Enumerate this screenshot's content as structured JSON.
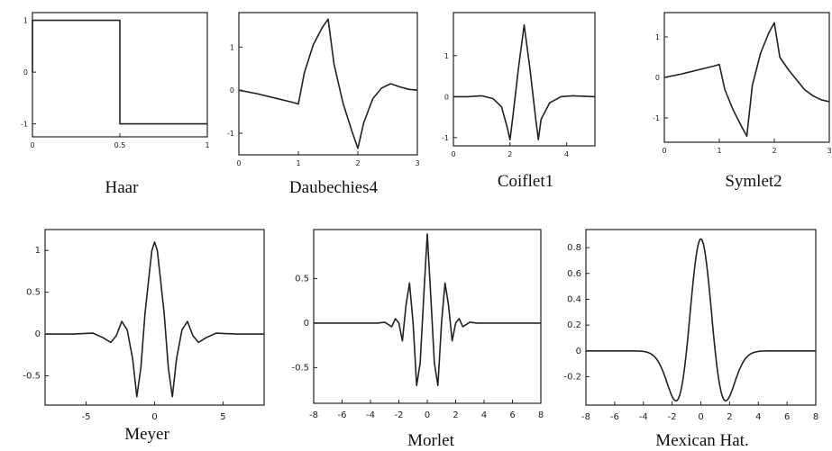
{
  "chart_data": [
    {
      "type": "line",
      "title": "Haar",
      "xlim": [
        0,
        1
      ],
      "ylim": [
        -1.25,
        1.15
      ],
      "xticks": [
        0,
        0.5,
        1
      ],
      "xtick_labels": [
        "0",
        "0.5",
        "1"
      ],
      "yticks": [
        1,
        0,
        -1
      ],
      "ytick_labels": [
        "1",
        "0",
        "-1"
      ],
      "series": [
        {
          "x": [
            0,
            0,
            0.5,
            0.5,
            1
          ],
          "y": [
            0,
            1,
            1,
            -1,
            -1
          ]
        }
      ]
    },
    {
      "type": "line",
      "title": "Daubechies4",
      "xlim": [
        0,
        3
      ],
      "ylim": [
        -1.5,
        1.8
      ],
      "xticks": [
        0,
        1,
        2,
        3
      ],
      "xtick_labels": [
        "0",
        "1",
        "2",
        "3"
      ],
      "yticks": [
        1,
        0,
        -1
      ],
      "ytick_labels": [
        "1",
        "0",
        "-1"
      ],
      "series": [
        {
          "x": [
            0,
            0.3,
            0.6,
            0.9,
            1.0,
            1.1,
            1.25,
            1.4,
            1.5,
            1.6,
            1.75,
            1.9,
            2.0,
            2.1,
            2.25,
            2.4,
            2.55,
            2.7,
            2.85,
            3.0
          ],
          "y": [
            0,
            -0.08,
            -0.18,
            -0.28,
            -0.32,
            0.4,
            1.05,
            1.45,
            1.65,
            0.6,
            -0.3,
            -0.95,
            -1.35,
            -0.75,
            -0.2,
            0.05,
            0.15,
            0.08,
            0.02,
            0.0
          ]
        }
      ]
    },
    {
      "type": "line",
      "title": "Coiflet1",
      "xlim": [
        0,
        5
      ],
      "ylim": [
        -1.2,
        2.05
      ],
      "xticks": [
        0,
        2,
        4
      ],
      "xtick_labels": [
        "0",
        "2",
        "4"
      ],
      "yticks": [
        1,
        0,
        -1
      ],
      "ytick_labels": [
        "1",
        "0",
        "-1"
      ],
      "series": [
        {
          "x": [
            0,
            0.5,
            1.0,
            1.4,
            1.7,
            1.9,
            2.0,
            2.1,
            2.3,
            2.5,
            2.7,
            2.9,
            3.0,
            3.1,
            3.4,
            3.8,
            4.2,
            5.0
          ],
          "y": [
            0,
            0,
            0.02,
            -0.05,
            -0.25,
            -0.75,
            -1.05,
            -0.5,
            0.7,
            1.75,
            0.7,
            -0.5,
            -1.05,
            -0.55,
            -0.15,
            0.0,
            0.02,
            0
          ]
        }
      ]
    },
    {
      "type": "line",
      "title": "Symlet2",
      "xlim": [
        0,
        3
      ],
      "ylim": [
        -1.6,
        1.6
      ],
      "xticks": [
        0,
        1,
        2,
        3
      ],
      "xtick_labels": [
        "0",
        "1",
        "2",
        "3"
      ],
      "yticks": [
        1,
        0,
        -1
      ],
      "ytick_labels": [
        "1",
        "0",
        "-1"
      ],
      "series": [
        {
          "x": [
            0,
            0.3,
            0.6,
            0.9,
            1.0,
            1.1,
            1.25,
            1.4,
            1.5,
            1.6,
            1.75,
            1.9,
            2.0,
            2.1,
            2.25,
            2.4,
            2.55,
            2.7,
            2.85,
            3.0
          ],
          "y": [
            0,
            0.08,
            0.18,
            0.28,
            0.32,
            -0.3,
            -0.8,
            -1.2,
            -1.45,
            -0.2,
            0.6,
            1.1,
            1.35,
            0.5,
            0.2,
            -0.05,
            -0.3,
            -0.45,
            -0.55,
            -0.6
          ]
        }
      ]
    },
    {
      "type": "line",
      "title": "Meyer",
      "xlim": [
        -8,
        8
      ],
      "ylim": [
        -0.85,
        1.25
      ],
      "xticks": [
        -5,
        0,
        5
      ],
      "xtick_labels": [
        "-5",
        "0",
        "5"
      ],
      "yticks": [
        1,
        0.5,
        0,
        -0.5
      ],
      "ytick_labels": [
        "1",
        "0.5",
        "0",
        "-0.5"
      ],
      "series": [
        {
          "x": [
            -8,
            -6,
            -4.5,
            -3.8,
            -3.2,
            -2.8,
            -2.4,
            -2.0,
            -1.6,
            -1.3,
            -1.0,
            -0.7,
            -0.4,
            -0.2,
            0,
            0.2,
            0.4,
            0.7,
            1.0,
            1.3,
            1.6,
            2.0,
            2.4,
            2.8,
            3.2,
            3.8,
            4.5,
            6,
            8
          ],
          "y": [
            0,
            0,
            0.01,
            -0.04,
            -0.1,
            -0.02,
            0.15,
            0.05,
            -0.3,
            -0.75,
            -0.4,
            0.25,
            0.7,
            1.0,
            1.1,
            1.0,
            0.7,
            0.25,
            -0.4,
            -0.75,
            -0.3,
            0.05,
            0.15,
            -0.02,
            -0.1,
            -0.04,
            0.01,
            0,
            0
          ]
        }
      ]
    },
    {
      "type": "line",
      "title": "Morlet",
      "xlim": [
        -8,
        8
      ],
      "ylim": [
        -0.9,
        1.05
      ],
      "xticks": [
        -8,
        -6,
        -4,
        -2,
        0,
        2,
        4,
        6,
        8
      ],
      "xtick_labels": [
        "-8",
        "-6",
        "-4",
        "-2",
        "0",
        "2",
        "4",
        "6",
        "8"
      ],
      "yticks": [
        0.5,
        0,
        -0.5
      ],
      "ytick_labels": [
        "0.5",
        "0",
        "-0.5"
      ],
      "series": [
        {
          "x": [
            -8,
            -3.5,
            -3.0,
            -2.5,
            -2.25,
            -2.0,
            -1.75,
            -1.5,
            -1.25,
            -1.0,
            -0.75,
            -0.5,
            -0.25,
            0,
            0.25,
            0.5,
            0.75,
            1.0,
            1.25,
            1.5,
            1.75,
            2.0,
            2.25,
            2.5,
            3.0,
            3.5,
            8
          ],
          "y": [
            0,
            0,
            0.01,
            -0.04,
            0.05,
            0.0,
            -0.2,
            0.2,
            0.45,
            0.0,
            -0.7,
            -0.45,
            0.3,
            1.0,
            0.3,
            -0.45,
            -0.7,
            0.0,
            0.45,
            0.2,
            -0.2,
            0.0,
            0.05,
            -0.04,
            0.01,
            0,
            0
          ]
        }
      ]
    },
    {
      "type": "line",
      "title": "Mexican Hat.",
      "xlim": [
        -8,
        8
      ],
      "ylim": [
        -0.42,
        0.94
      ],
      "xticks": [
        -8,
        -6,
        -4,
        -2,
        0,
        2,
        4,
        6,
        8
      ],
      "xtick_labels": [
        "-8",
        "-6",
        "-4",
        "-2",
        "0",
        "2",
        "4",
        "6",
        "8"
      ],
      "yticks": [
        0.8,
        0.6,
        0.4,
        0.2,
        0,
        -0.2
      ],
      "ytick_labels": [
        "0.8",
        "0.6",
        "0.4",
        "0.2",
        "0",
        "-0.2"
      ],
      "series": [
        {
          "function": "mexican_hat",
          "amplitude": 0.867
        }
      ]
    }
  ]
}
